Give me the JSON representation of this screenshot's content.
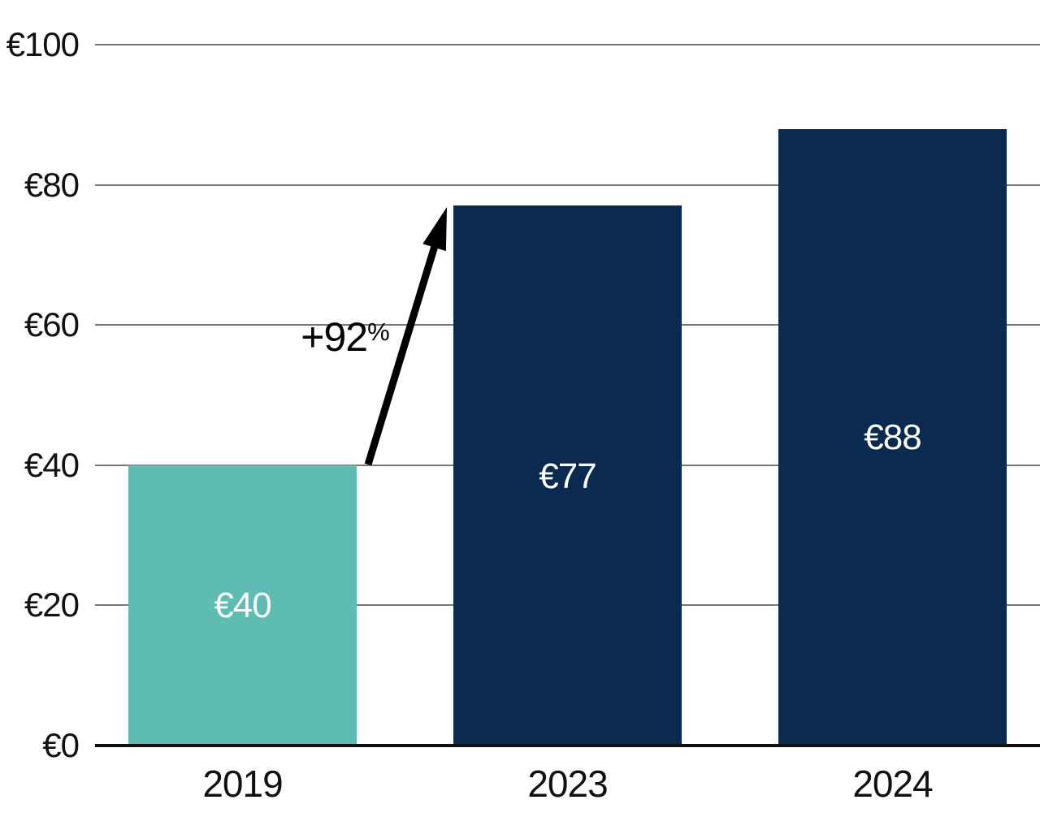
{
  "chart_data": {
    "type": "bar",
    "title": "",
    "categories": [
      "2019",
      "2023",
      "2024"
    ],
    "values": [
      40,
      77,
      88
    ],
    "value_labels": [
      "€40",
      "€77",
      "€88"
    ],
    "currency_prefix": "€",
    "ylim": [
      0,
      100
    ],
    "yticks": [
      0,
      20,
      40,
      60,
      80,
      100
    ],
    "ytick_labels": [
      "€0",
      "€20",
      "€40",
      "€60",
      "€80",
      "€100"
    ],
    "xlabel": "",
    "ylabel": "",
    "grid": true,
    "legend": false,
    "annotation": {
      "text": "+92%",
      "value_part": "+92",
      "percent_part": "%",
      "from_category": "2019",
      "to_category": "2023"
    },
    "colors": {
      "series": [
        "#5EBCB2",
        "#0A2A50",
        "#0A2A50"
      ],
      "grid_line": "#777777",
      "axis_line": "#111111",
      "tick_text": "#111111",
      "value_label_text": "#FFFFFF",
      "annotation": "#000000"
    }
  }
}
